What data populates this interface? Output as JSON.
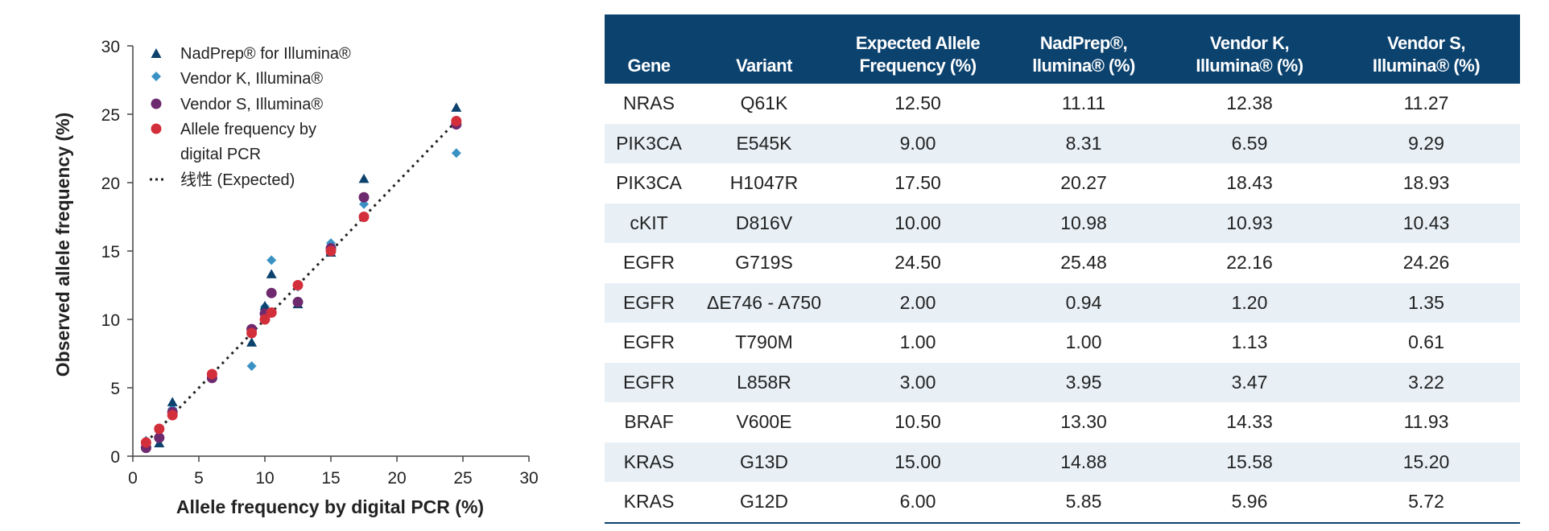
{
  "chart_data": {
    "type": "scatter",
    "xlabel": "Allele frequency by digital PCR (%)",
    "ylabel": "Observed allele frequency (%)",
    "xlim": [
      0,
      30
    ],
    "ylim": [
      0,
      30
    ],
    "xticks": [
      0,
      5,
      10,
      15,
      20,
      25,
      30
    ],
    "yticks": [
      0,
      5,
      10,
      15,
      20,
      25,
      30
    ],
    "grid": false,
    "legend_position": "top-left",
    "series": [
      {
        "name": "NadPrep® for Illumina®",
        "marker": "triangle",
        "color": "#0c426e",
        "x": [
          12.5,
          9.0,
          17.5,
          10.0,
          24.5,
          2.0,
          1.0,
          3.0,
          10.5,
          15.0,
          6.0
        ],
        "y": [
          11.11,
          8.31,
          20.27,
          10.98,
          25.48,
          0.94,
          1.0,
          3.95,
          13.3,
          14.88,
          5.85
        ]
      },
      {
        "name": "Vendor K, Illumina®",
        "marker": "diamond",
        "color": "#3a92c4",
        "x": [
          12.5,
          9.0,
          17.5,
          10.0,
          24.5,
          2.0,
          1.0,
          3.0,
          10.5,
          15.0,
          6.0
        ],
        "y": [
          12.38,
          6.59,
          18.43,
          10.93,
          22.16,
          1.2,
          1.13,
          3.47,
          14.33,
          15.58,
          5.96
        ]
      },
      {
        "name": "Vendor S, Illumina®",
        "marker": "circle",
        "color": "#6e2a6f",
        "x": [
          12.5,
          9.0,
          17.5,
          10.0,
          24.5,
          2.0,
          1.0,
          3.0,
          10.5,
          15.0,
          6.0
        ],
        "y": [
          11.27,
          9.29,
          18.93,
          10.43,
          24.26,
          1.35,
          0.61,
          3.22,
          11.93,
          15.2,
          5.72
        ]
      },
      {
        "name": "Allele frequency by digital PCR",
        "marker": "circle",
        "color": "#d32f3b",
        "x": [
          12.5,
          9.0,
          17.5,
          10.0,
          24.5,
          2.0,
          1.0,
          3.0,
          10.5,
          15.0,
          6.0
        ],
        "y": [
          12.5,
          9.0,
          17.5,
          10.0,
          24.5,
          2.0,
          1.0,
          3.0,
          10.5,
          15.0,
          6.0
        ]
      },
      {
        "name": "线性 (Expected)",
        "type": "line",
        "style": "dotted",
        "color": "#222222",
        "x": [
          1,
          24.5
        ],
        "y": [
          1,
          24.5
        ]
      }
    ]
  },
  "legend": {
    "nadprep": "NadPrep® for Illumina®",
    "vendor_k": "Vendor K, Illumina®",
    "vendor_s": "Vendor S, Illumina®",
    "dpcr_line1": "Allele frequency by",
    "dpcr_line2": "digital PCR",
    "expected": "线性 (Expected)"
  },
  "table": {
    "headers": [
      {
        "line1": "",
        "line2": "Gene"
      },
      {
        "line1": "",
        "line2": "Variant"
      },
      {
        "line1": "Expected Allele",
        "line2": "Frequency (%)"
      },
      {
        "line1": "NadPrep®,",
        "line2": "llumina® (%)"
      },
      {
        "line1": "Vendor K,",
        "line2": "Illumina® (%)"
      },
      {
        "line1": "Vendor S,",
        "line2": "Illumina® (%)"
      }
    ],
    "rows": [
      [
        "NRAS",
        "Q61K",
        "12.50",
        "11.11",
        "12.38",
        "11.27"
      ],
      [
        "PIK3CA",
        "E545K",
        "9.00",
        "8.31",
        "6.59",
        "9.29"
      ],
      [
        "PIK3CA",
        "H1047R",
        "17.50",
        "20.27",
        "18.43",
        "18.93"
      ],
      [
        "cKIT",
        "D816V",
        "10.00",
        "10.98",
        "10.93",
        "10.43"
      ],
      [
        "EGFR",
        "G719S",
        "24.50",
        "25.48",
        "22.16",
        "24.26"
      ],
      [
        "EGFR",
        "ΔE746 - A750",
        "2.00",
        "0.94",
        "1.20",
        "1.35"
      ],
      [
        "EGFR",
        "T790M",
        "1.00",
        "1.00",
        "1.13",
        "0.61"
      ],
      [
        "EGFR",
        "L858R",
        "3.00",
        "3.95",
        "3.47",
        "3.22"
      ],
      [
        "BRAF",
        "V600E",
        "10.50",
        "13.30",
        "14.33",
        "11.93"
      ],
      [
        "KRAS",
        "G13D",
        "15.00",
        "14.88",
        "15.58",
        "15.20"
      ],
      [
        "KRAS",
        "G12D",
        "6.00",
        "5.85",
        "5.96",
        "5.72"
      ]
    ]
  }
}
